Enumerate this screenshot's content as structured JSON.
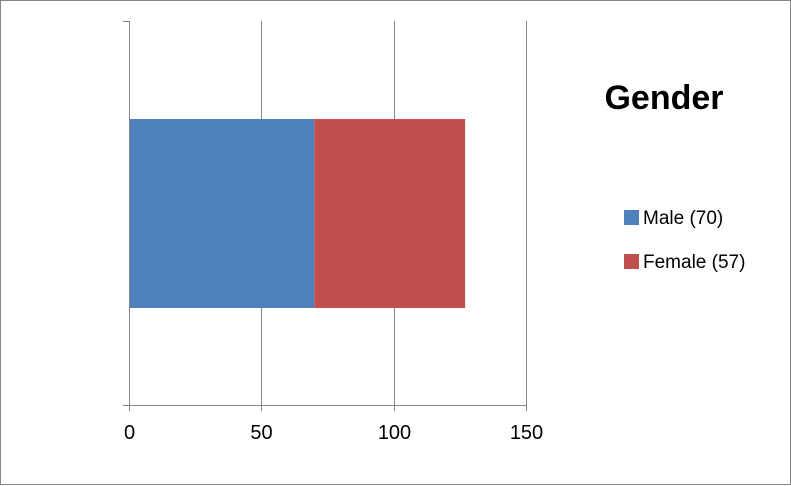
{
  "chart_data": {
    "type": "bar",
    "orientation": "horizontal",
    "stacked": true,
    "title": "Gender",
    "categories": [
      ""
    ],
    "series": [
      {
        "name": "Male (70)",
        "values": [
          70
        ],
        "color": "#4F81BD"
      },
      {
        "name": "Female (57)",
        "values": [
          57
        ],
        "color": "#C0504D"
      }
    ],
    "xlim": [
      0,
      150
    ],
    "x_ticks": [
      0,
      50,
      100,
      150
    ],
    "x_tick_labels": [
      "0",
      "50",
      "100",
      "150"
    ],
    "xlabel": "",
    "ylabel": "",
    "grid": true,
    "legend_position": "right"
  }
}
